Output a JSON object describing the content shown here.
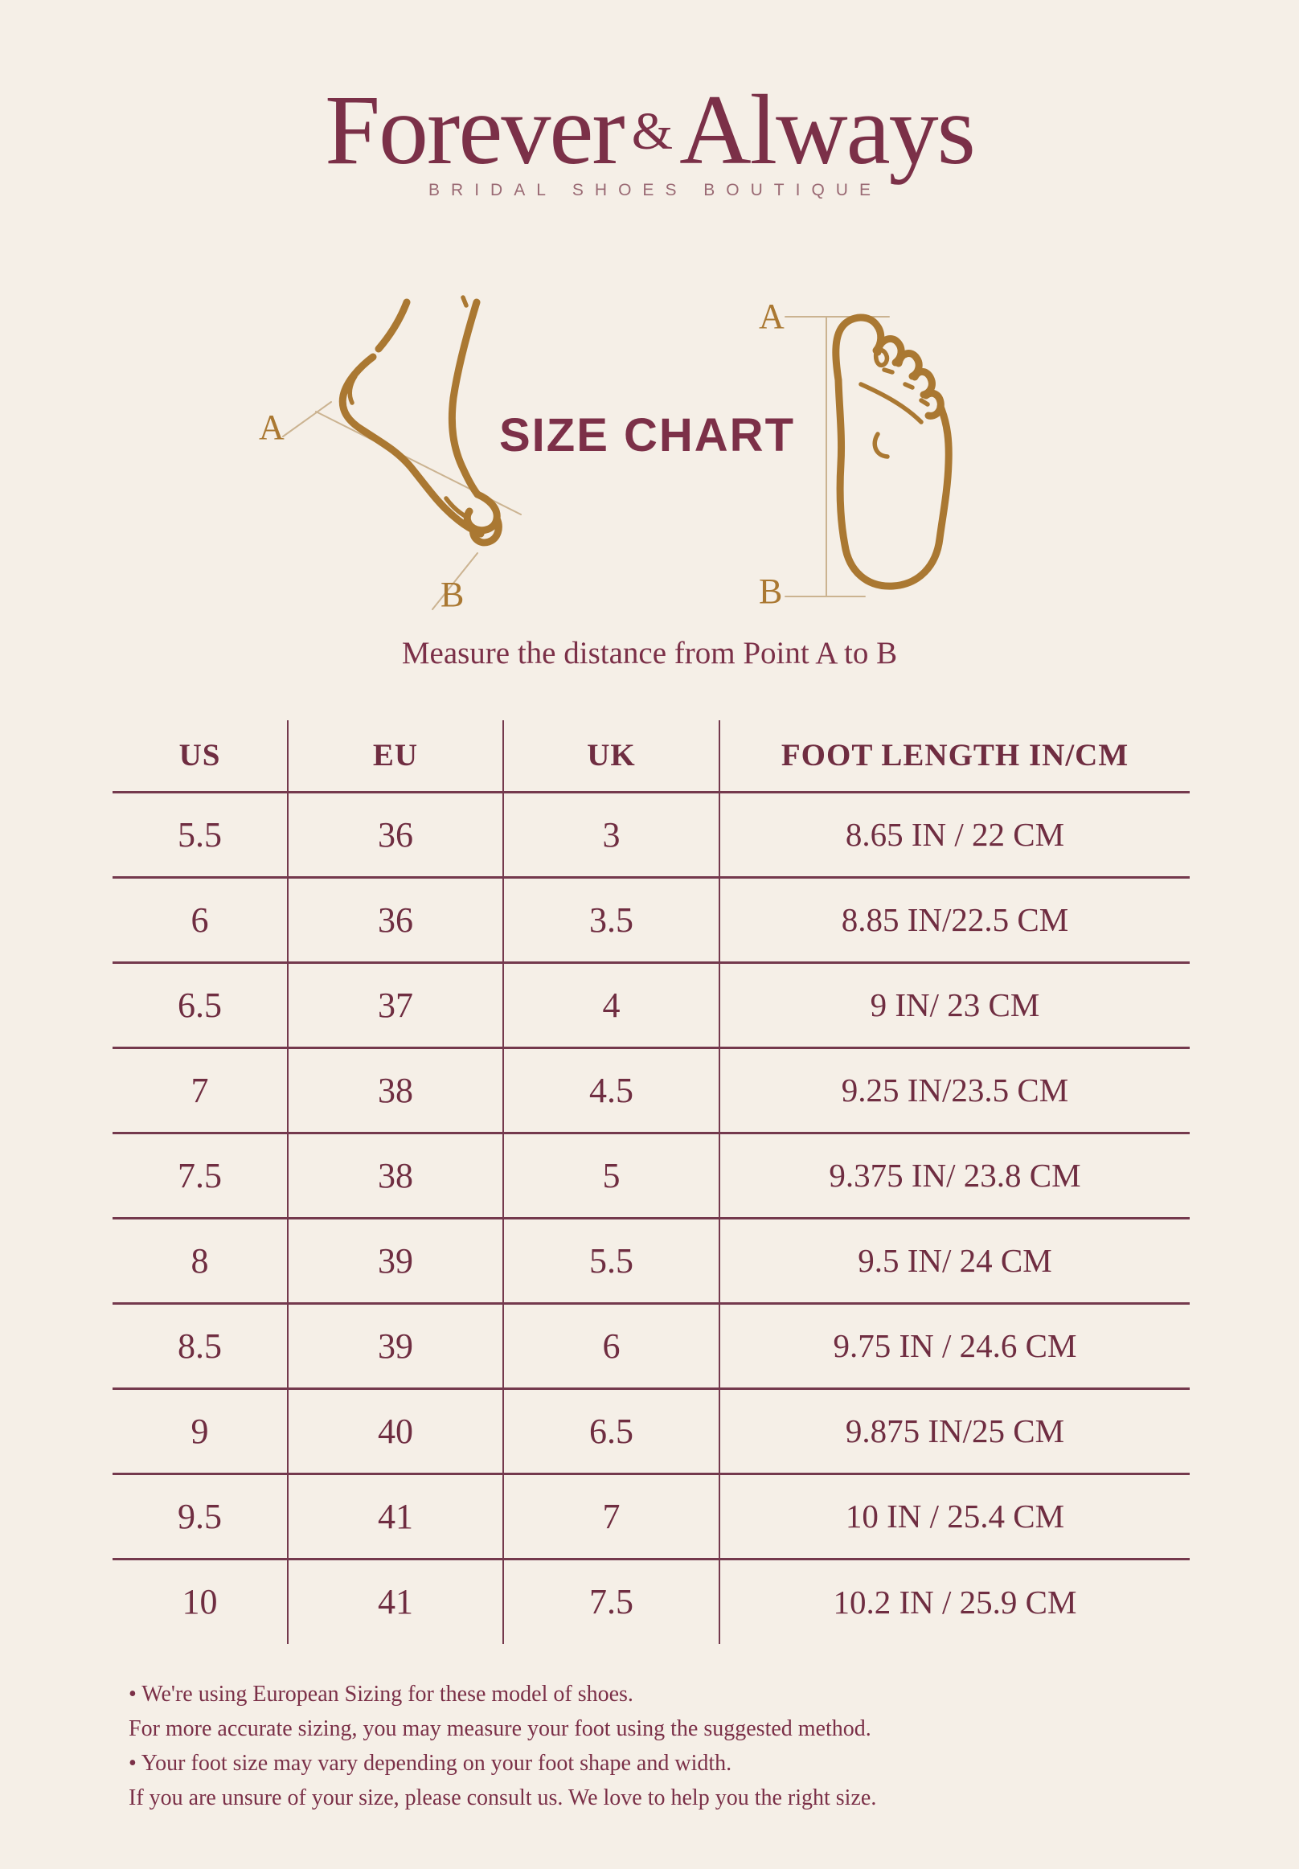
{
  "colors": {
    "bg": "#f5efe7",
    "maroon": "#7b3048",
    "maroon_dark": "#6f2d41",
    "line": "#74394d",
    "gold": "#aa7832",
    "tan": "#cbb391",
    "tagline": "#9a6a74",
    "title": "#7c3048"
  },
  "logo": {
    "word_left": "Forever",
    "ampersand": "&",
    "word_right": "Always",
    "tagline": "BRIDAL SHOES BOUTIQUE"
  },
  "diagram": {
    "title": "SIZE CHART",
    "label_a": "A",
    "label_b": "B",
    "instruction": "Measure the distance from Point A to B"
  },
  "table": {
    "headers": [
      "US",
      "EU",
      "UK",
      "FOOT LENGTH IN/CM"
    ],
    "rows": [
      [
        "5.5",
        "36",
        "3",
        "8.65 IN / 22 CM"
      ],
      [
        "6",
        "36",
        "3.5",
        "8.85 IN/22.5 CM"
      ],
      [
        "6.5",
        "37",
        "4",
        "9 IN/ 23 CM"
      ],
      [
        "7",
        "38",
        "4.5",
        "9.25 IN/23.5 CM"
      ],
      [
        "7.5",
        "38",
        "5",
        "9.375 IN/ 23.8 CM"
      ],
      [
        "8",
        "39",
        "5.5",
        "9.5 IN/ 24 CM"
      ],
      [
        "8.5",
        "39",
        "6",
        "9.75 IN / 24.6 CM"
      ],
      [
        "9",
        "40",
        "6.5",
        "9.875 IN/25 CM"
      ],
      [
        "9.5",
        "41",
        "7",
        "10 IN / 25.4 CM"
      ],
      [
        "10",
        "41",
        "7.5",
        "10.2 IN / 25.9 CM"
      ]
    ]
  },
  "notes": [
    "• We're using European Sizing for these model of shoes.",
    "For more accurate sizing, you may measure your foot using the suggested method.",
    "• Your foot size may vary depending on your foot shape and width.",
    "If you are unsure of your size, please consult us. We love to help you the right size."
  ]
}
